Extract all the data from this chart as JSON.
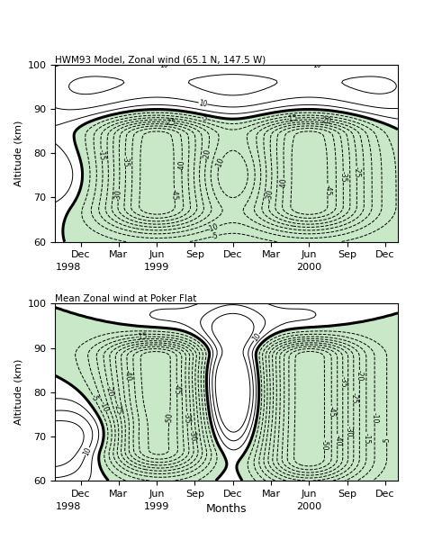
{
  "title_top": "HWM93 Model, Zonal wind (65.1 N, 147.5 W)",
  "title_bot": "Mean Zonal wind at Poker Flat",
  "ylabel": "Altitude (km)",
  "xlabel": "Months",
  "alt_min": 60,
  "alt_max": 100,
  "fill_color": "#c8e8c8",
  "background": "#ffffff",
  "tick_positions": [
    2,
    5,
    8,
    11,
    14,
    17,
    20,
    23,
    26
  ],
  "tick_labels": [
    "Dec",
    "Mar",
    "Jun",
    "Sep",
    "Dec",
    "Mar",
    "Jun",
    "Sep",
    "Dec"
  ],
  "year_info": [
    {
      "label": "1998",
      "x": 0
    },
    {
      "label": "1999",
      "x": 8
    },
    {
      "label": "2000",
      "x": 20
    }
  ]
}
